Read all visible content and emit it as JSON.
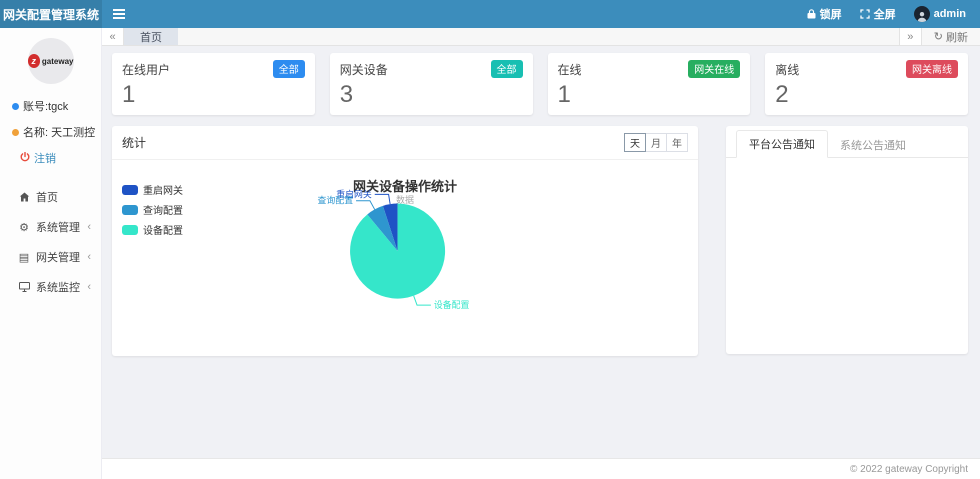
{
  "navbar": {
    "brand": "网关配置管理系统",
    "lock_label": "锁屏",
    "fullscreen_label": "全屏",
    "username": "admin"
  },
  "tabbar": {
    "home_tab": "首页",
    "refresh_label": "刷新",
    "refresh_icon_glyph": "↻",
    "left_arrow_glyph": "«",
    "right_arrow_glyph": "»"
  },
  "sidebar": {
    "logo_text": "gateway",
    "account_label": "账号:tgck",
    "name_label": "名称: 天工测控",
    "logout_label": "注销",
    "account_dot_color": "#2d8cf0",
    "name_dot_color": "#f0a13a",
    "menu": [
      {
        "label": "首页",
        "icon": "home-icon",
        "has_children": false
      },
      {
        "label": "系统管理",
        "icon": "gear-icon",
        "has_children": true
      },
      {
        "label": "网关管理",
        "icon": "list-icon",
        "has_children": true
      },
      {
        "label": "系统监控",
        "icon": "monitor-icon",
        "has_children": true
      }
    ],
    "chevron_glyph": "‹",
    "gear_glyph": "⚙",
    "list_glyph": "▤"
  },
  "cards": [
    {
      "title": "在线用户",
      "badge": "全部",
      "badge_color": "#2d8cf0",
      "value": "1"
    },
    {
      "title": "网关设备",
      "badge": "全部",
      "badge_color": "#18bfb2",
      "value": "3"
    },
    {
      "title": "在线",
      "badge": "网关在线",
      "badge_color": "#27ae60",
      "value": "1"
    },
    {
      "title": "离线",
      "badge": "网关离线",
      "badge_color": "#dd4b5c",
      "value": "2"
    }
  ],
  "stats_panel": {
    "title": "统计",
    "range_buttons": [
      "天",
      "月",
      "年"
    ],
    "active_range": "天"
  },
  "notice_panel": {
    "tabs": [
      "平台公告通知",
      "系统公告通知"
    ],
    "active_tab": "平台公告通知"
  },
  "footer": {
    "copyright": "© 2022 gateway Copyright"
  },
  "chart_data": {
    "type": "pie",
    "title": "网关设备操作统计",
    "subtitle": "数据",
    "legend": [
      "重启网关",
      "查询配置",
      "设备配置"
    ],
    "series": [
      {
        "name": "重启网关",
        "value": 5
      },
      {
        "name": "查询配置",
        "value": 6
      },
      {
        "name": "设备配置",
        "value": 89
      }
    ],
    "colors": [
      "#1f53c5",
      "#2e96cf",
      "#35e6ca"
    ],
    "legend_position": "top-left",
    "values_are": "estimated percent of operations"
  }
}
